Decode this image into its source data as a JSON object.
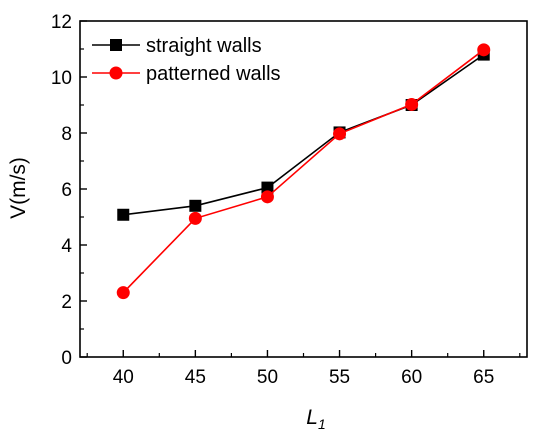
{
  "chart_data": {
    "type": "line",
    "x": [
      40,
      45,
      50,
      55,
      60,
      65
    ],
    "series": [
      {
        "name": "straight walls",
        "values": [
          5.08,
          5.4,
          6.05,
          8.02,
          9.0,
          10.8
        ],
        "color": "#000000",
        "marker": "square"
      },
      {
        "name": "patterned walls",
        "values": [
          2.3,
          4.95,
          5.72,
          7.97,
          9.02,
          10.97
        ],
        "color": "#ff0000",
        "marker": "circle"
      }
    ],
    "xlabel": "L",
    "xlabel_subscript": "1",
    "ylabel": "V(m/s)",
    "xlim": [
      37,
      68
    ],
    "ylim": [
      0,
      12
    ],
    "xticks": [
      "40",
      "45",
      "50",
      "55",
      "60",
      "65"
    ],
    "yticks": [
      "0",
      "2",
      "4",
      "6",
      "8",
      "10",
      "12"
    ],
    "legend_position": "top-left",
    "grid": false
  }
}
